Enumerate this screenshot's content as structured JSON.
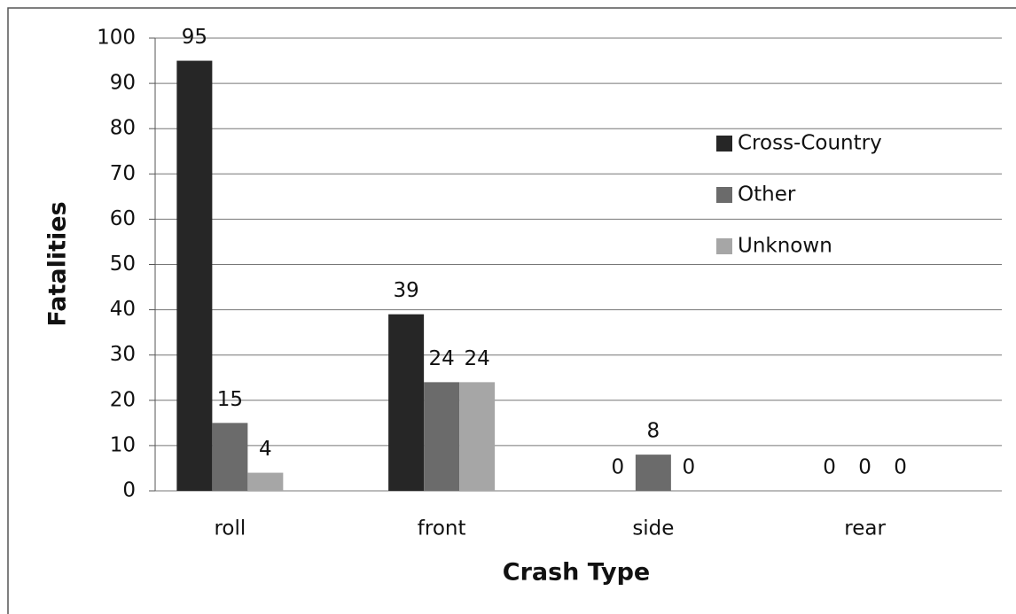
{
  "chart_data": {
    "type": "bar",
    "categories": [
      "roll",
      "front",
      "side",
      "rear"
    ],
    "series": [
      {
        "name": "Cross-Country",
        "color": "#262626",
        "values": [
          95,
          39,
          0,
          0
        ]
      },
      {
        "name": "Other",
        "color": "#6b6b6b",
        "values": [
          15,
          24,
          8,
          0
        ]
      },
      {
        "name": "Unknown",
        "color": "#a6a6a6",
        "values": [
          4,
          24,
          0,
          0
        ]
      }
    ],
    "ylim": [
      0,
      100
    ],
    "yticks": [
      0,
      10,
      20,
      30,
      40,
      50,
      60,
      70,
      80,
      90,
      100
    ],
    "grid": true,
    "legend": "right",
    "x_label": "Crash Type",
    "y_label": "Fatalities"
  }
}
